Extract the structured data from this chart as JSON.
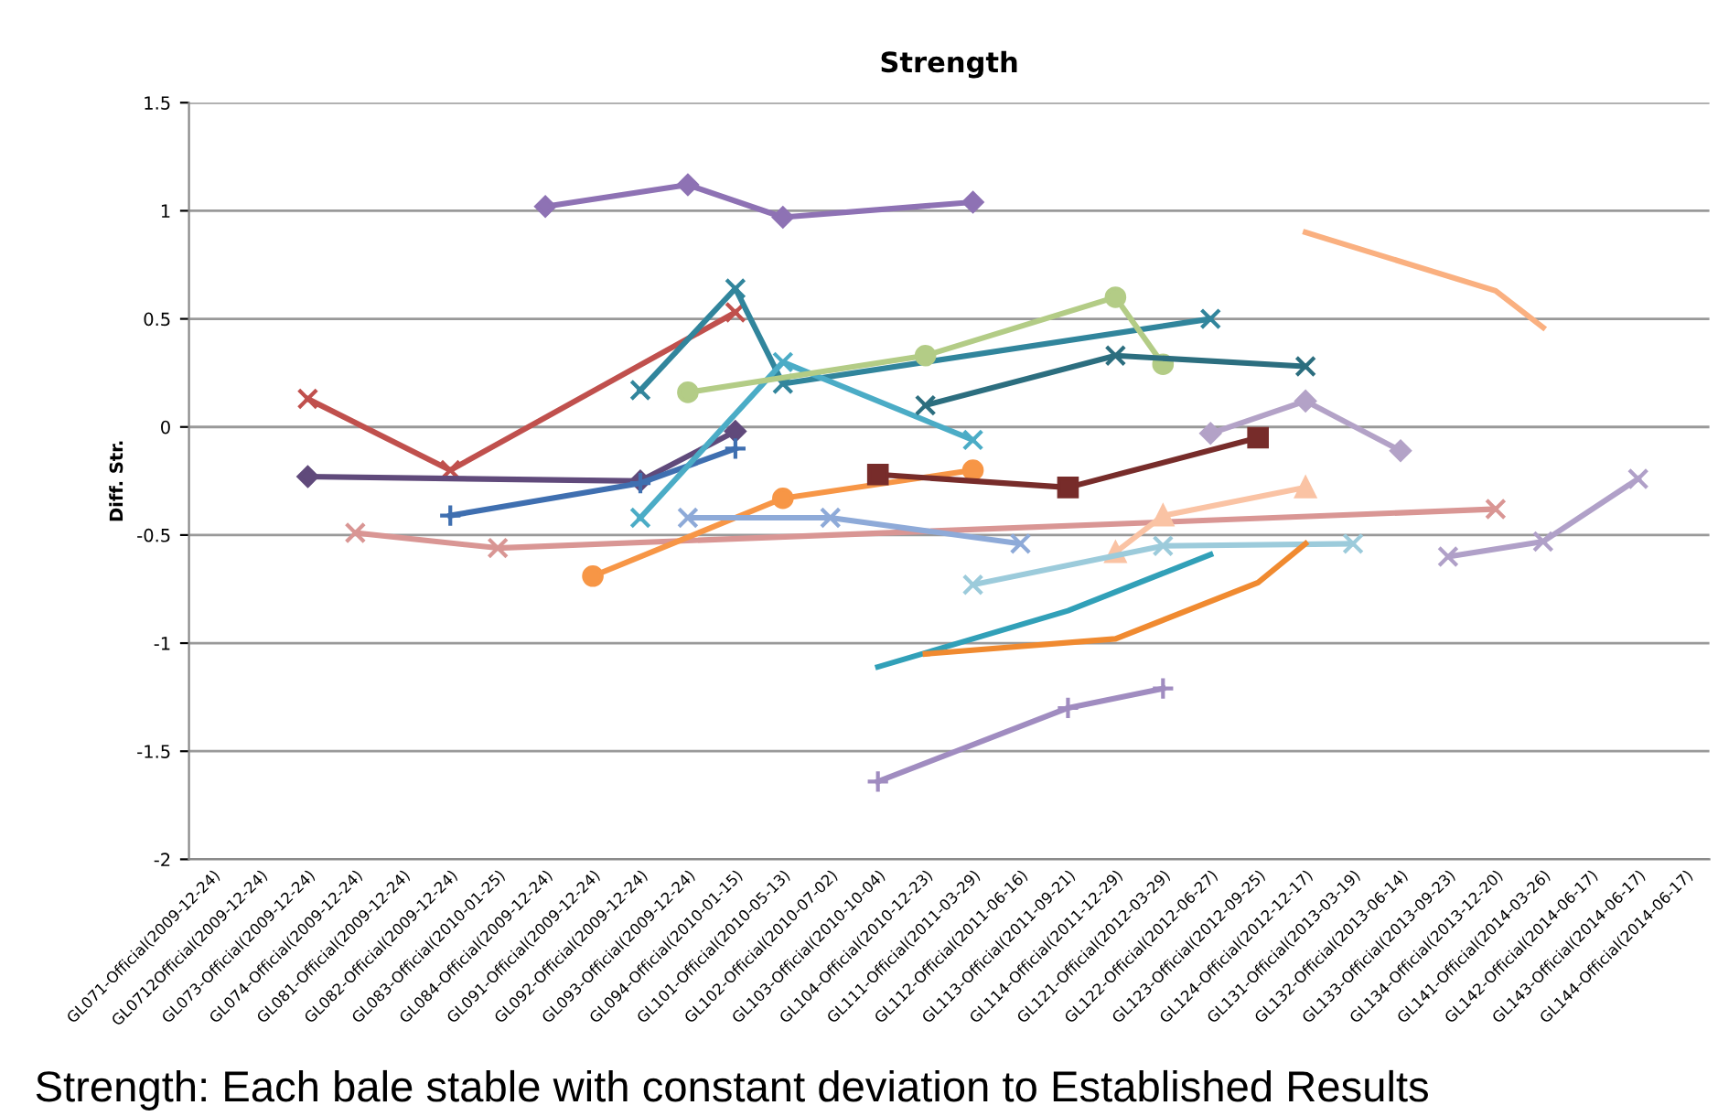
{
  "chart_data": {
    "type": "line",
    "title": "Strength",
    "ylabel": "Diff. Str.",
    "annotations": [
      "Strength: Each bale stable with constant deviation to Established Results"
    ],
    "categories": [
      "GL071-Official(2009-12-24)",
      "GL0712Official(2009-12-24)",
      "GL073-Official(2009-12-24)",
      "GL074-Official(2009-12-24)",
      "GL081-Official(2009-12-24)",
      "GL082-Official(2009-12-24)",
      "GL083-Official(2010-01-25)",
      "GL084-Official(2009-12-24)",
      "GL091-Official(2009-12-24)",
      "GL092-Official(2009-12-24)",
      "GL093-Official(2009-12-24)",
      "GL094-Official(2010-01-15)",
      "GL101-Official(2010-05-13)",
      "GL102-Official(2010-07-02)",
      "GL103-Official(2010-10-04)",
      "GL104-Official(2010-12-23)",
      "GL111-Official(2011-03-29)",
      "GL112-Official(2011-06-16)",
      "GL113-Official(2011-09-21)",
      "GL114-Official(2011-12-29)",
      "GL121-Official(2012-03-29)",
      "GL122-Official(2012-06-27)",
      "GL123-Official(2012-09-25)",
      "GL124-Official(2012-12-17)",
      "GL131-Official(2013-03-19)",
      "GL132-Official(2013-06-14)",
      "GL133-Official(2013-09-23)",
      "GL134-Official(2013-12-20)",
      "GL141-Official(2014-03-26)",
      "GL142-Official(2014-06-17)",
      "GL143-Official(2014-06-17)",
      "GL144-Official(2014-06-17)"
    ],
    "ylim": [
      -2,
      1.5
    ],
    "yticks": [
      -2,
      -1.5,
      -1,
      -0.5,
      0,
      0.5,
      1,
      1.5
    ],
    "grid": "y",
    "legend": false,
    "series": [
      {
        "color": "#8e72b4",
        "marker": "diamond",
        "values": [
          null,
          null,
          null,
          null,
          null,
          null,
          null,
          1.02,
          null,
          null,
          1.12,
          null,
          0.97,
          null,
          null,
          null,
          1.04,
          null,
          null,
          null,
          null,
          null,
          null,
          null,
          null,
          null,
          null,
          null,
          null,
          null,
          null,
          null
        ]
      },
      {
        "color": "#c0504d",
        "marker": "cross",
        "values": [
          null,
          null,
          0.13,
          null,
          null,
          -0.2,
          null,
          null,
          null,
          null,
          null,
          0.53,
          null,
          null,
          null,
          null,
          null,
          null,
          null,
          null,
          null,
          null,
          null,
          null,
          null,
          null,
          null,
          null,
          null,
          null,
          null,
          null
        ]
      },
      {
        "color": "#604a7b",
        "marker": "diamond",
        "values": [
          null,
          null,
          -0.23,
          null,
          null,
          null,
          null,
          null,
          null,
          -0.25,
          null,
          -0.02,
          null,
          null,
          null,
          null,
          null,
          null,
          null,
          null,
          null,
          null,
          null,
          null,
          null,
          null,
          null,
          null,
          null,
          null,
          null,
          null
        ]
      },
      {
        "color": "#3f6fb0",
        "marker": "plus",
        "values": [
          null,
          null,
          null,
          null,
          null,
          -0.41,
          null,
          null,
          null,
          -0.26,
          null,
          -0.1,
          null,
          null,
          null,
          null,
          null,
          null,
          null,
          null,
          null,
          null,
          null,
          null,
          null,
          null,
          null,
          null,
          null,
          null,
          null,
          null
        ]
      },
      {
        "color": "#31859c",
        "marker": "cross",
        "values": [
          null,
          null,
          null,
          null,
          null,
          null,
          null,
          null,
          null,
          0.17,
          null,
          0.64,
          0.2,
          null,
          null,
          null,
          null,
          null,
          null,
          null,
          null,
          0.5,
          null,
          null,
          null,
          null,
          null,
          null,
          null,
          null,
          null,
          null
        ]
      },
      {
        "color": "#4bacc6",
        "marker": "cross",
        "values": [
          null,
          null,
          null,
          null,
          null,
          null,
          null,
          null,
          null,
          -0.42,
          null,
          null,
          0.3,
          null,
          null,
          null,
          -0.06,
          null,
          null,
          null,
          null,
          null,
          null,
          null,
          null,
          null,
          null,
          null,
          null,
          null,
          null,
          null
        ]
      },
      {
        "color": "#d99694",
        "marker": "cross",
        "values": [
          null,
          null,
          null,
          -0.49,
          null,
          null,
          -0.56,
          null,
          null,
          null,
          null,
          null,
          null,
          null,
          null,
          null,
          null,
          null,
          null,
          null,
          null,
          null,
          null,
          null,
          null,
          null,
          null,
          -0.38,
          null,
          null,
          null,
          null
        ]
      },
      {
        "color": "#b3cc86",
        "marker": "circle",
        "values": [
          null,
          null,
          null,
          null,
          null,
          null,
          null,
          null,
          null,
          null,
          0.16,
          null,
          null,
          null,
          null,
          0.33,
          null,
          null,
          null,
          0.6,
          0.29,
          null,
          null,
          null,
          null,
          null,
          null,
          null,
          null,
          null,
          null,
          null
        ]
      },
      {
        "color": "#2c6e7f",
        "marker": "cross",
        "values": [
          null,
          null,
          null,
          null,
          null,
          null,
          null,
          null,
          null,
          null,
          null,
          null,
          null,
          null,
          null,
          0.1,
          null,
          null,
          null,
          0.33,
          null,
          null,
          null,
          0.28,
          null,
          null,
          null,
          null,
          null,
          null,
          null,
          null
        ]
      },
      {
        "color": "#f79646",
        "marker": "circle",
        "values": [
          null,
          null,
          null,
          null,
          null,
          null,
          null,
          null,
          -0.69,
          null,
          null,
          null,
          -0.33,
          null,
          null,
          null,
          -0.2,
          null,
          null,
          null,
          null,
          null,
          null,
          null,
          null,
          null,
          null,
          null,
          null,
          null,
          null,
          null
        ]
      },
      {
        "color": "#8eaad8",
        "marker": "cross",
        "values": [
          null,
          null,
          null,
          null,
          null,
          null,
          null,
          null,
          null,
          null,
          -0.42,
          null,
          null,
          -0.42,
          null,
          null,
          null,
          -0.54,
          null,
          null,
          null,
          null,
          null,
          null,
          null,
          null,
          null,
          null,
          null,
          null,
          null,
          null
        ]
      },
      {
        "color": "#772c2a",
        "marker": "square",
        "values": [
          null,
          null,
          null,
          null,
          null,
          null,
          null,
          null,
          null,
          null,
          null,
          null,
          null,
          null,
          -0.22,
          null,
          null,
          null,
          -0.28,
          null,
          null,
          null,
          -0.05,
          null,
          null,
          null,
          null,
          null,
          null,
          null,
          null,
          null
        ]
      },
      {
        "color": "#b3a2c7",
        "marker": "diamond",
        "values": [
          null,
          null,
          null,
          null,
          null,
          null,
          null,
          null,
          null,
          null,
          null,
          null,
          null,
          null,
          null,
          null,
          null,
          null,
          null,
          null,
          null,
          -0.03,
          null,
          0.12,
          null,
          -0.11,
          null,
          null,
          null,
          null,
          null,
          null
        ]
      },
      {
        "color": "#fab080",
        "marker": "none",
        "values": [
          null,
          null,
          null,
          null,
          null,
          null,
          null,
          null,
          null,
          null,
          null,
          null,
          null,
          null,
          null,
          null,
          null,
          null,
          null,
          null,
          null,
          null,
          null,
          0.9,
          null,
          null,
          null,
          0.63,
          0.46,
          null,
          null,
          null
        ]
      },
      {
        "color": "#fac3a4",
        "marker": "triangle",
        "values": [
          null,
          null,
          null,
          null,
          null,
          null,
          null,
          null,
          null,
          null,
          null,
          null,
          null,
          null,
          null,
          null,
          null,
          null,
          null,
          -0.58,
          -0.41,
          null,
          null,
          -0.28,
          null,
          null,
          null,
          null,
          null,
          null,
          null,
          null
        ]
      },
      {
        "color": "#9ccbdb",
        "marker": "cross",
        "values": [
          null,
          null,
          null,
          null,
          null,
          null,
          null,
          null,
          null,
          null,
          null,
          null,
          null,
          null,
          null,
          null,
          -0.73,
          null,
          null,
          null,
          -0.55,
          null,
          null,
          null,
          -0.54,
          null,
          null,
          null,
          null,
          null,
          null,
          null
        ]
      },
      {
        "color": "#31a0b8",
        "marker": "none",
        "values": [
          null,
          null,
          null,
          null,
          null,
          null,
          null,
          null,
          null,
          null,
          null,
          null,
          null,
          null,
          -1.11,
          null,
          null,
          null,
          -0.85,
          null,
          null,
          -0.59,
          null,
          null,
          null,
          null,
          null,
          null,
          null,
          null,
          null,
          null
        ]
      },
      {
        "color": "#f08a30",
        "marker": "none",
        "values": [
          null,
          null,
          null,
          null,
          null,
          null,
          null,
          null,
          null,
          null,
          null,
          null,
          null,
          null,
          null,
          -1.05,
          null,
          null,
          null,
          -0.98,
          null,
          null,
          -0.72,
          -0.54,
          null,
          null,
          null,
          null,
          null,
          null,
          null,
          null
        ]
      },
      {
        "color": "#a08cc0",
        "marker": "plus",
        "values": [
          null,
          null,
          null,
          null,
          null,
          null,
          null,
          null,
          null,
          null,
          null,
          null,
          null,
          null,
          -1.64,
          null,
          null,
          null,
          -1.3,
          null,
          -1.21,
          null,
          null,
          null,
          null,
          null,
          null,
          null,
          null,
          null,
          null,
          null
        ]
      },
      {
        "color": "#b0a0c8",
        "marker": "cross",
        "values": [
          null,
          null,
          null,
          null,
          null,
          null,
          null,
          null,
          null,
          null,
          null,
          null,
          null,
          null,
          null,
          null,
          null,
          null,
          null,
          null,
          null,
          null,
          null,
          null,
          null,
          null,
          -0.6,
          null,
          -0.53,
          null,
          -0.24,
          null
        ]
      }
    ]
  }
}
